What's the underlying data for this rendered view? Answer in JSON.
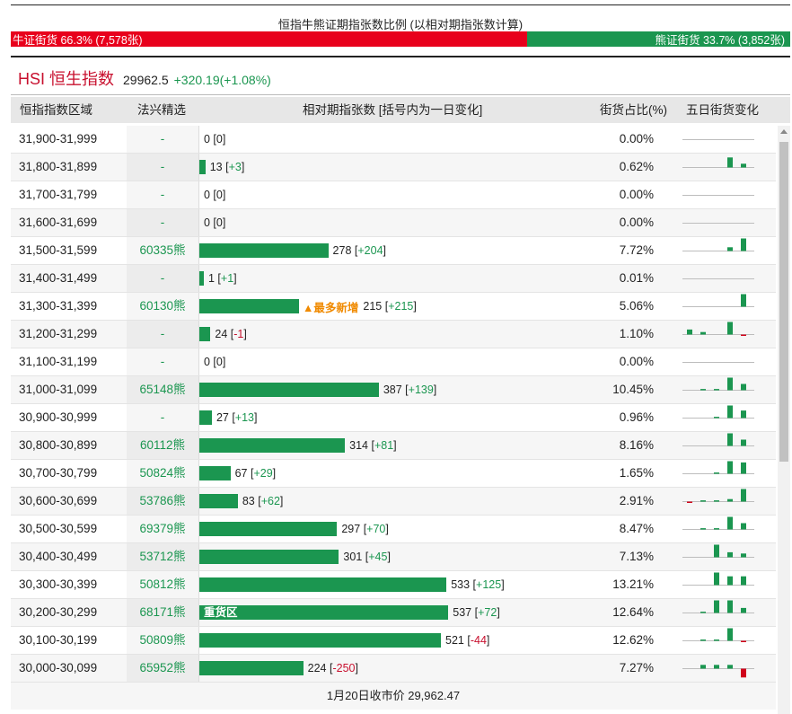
{
  "header": {
    "ratio_title": "恒指牛熊证期指张数比例 (以相对期指张数计算)",
    "bull_label": "牛证街货 66.3% (7,578张)",
    "bear_label": "熊证街货 33.7% (3,852张)",
    "bull_fraction": 0.663,
    "bull_color": "#e8001c",
    "bear_color": "#1b9650"
  },
  "index": {
    "name": "HSI 恒生指数",
    "price": "29962.5",
    "change": "+320.19(+1.08%)"
  },
  "table": {
    "columns": [
      "恒指指数区域",
      "法兴精选",
      "相对期指张数 [括号内为一日变化]",
      "街货占比(%)",
      "五日街货变化"
    ],
    "max_contracts": 550,
    "rows": [
      {
        "range": "31,900-31,999",
        "pick": "-",
        "value": "0",
        "delta": "0",
        "pct": "0.00%",
        "spark": [
          0,
          0,
          0,
          0,
          0
        ]
      },
      {
        "range": "31,800-31,899",
        "pick": "-",
        "value": "13",
        "delta": "+3",
        "pct": "0.62%",
        "spark": [
          0,
          0,
          0,
          8,
          3
        ]
      },
      {
        "range": "31,700-31,799",
        "pick": "-",
        "value": "0",
        "delta": "0",
        "pct": "0.00%",
        "spark": [
          0,
          0,
          0,
          0,
          0
        ]
      },
      {
        "range": "31,600-31,699",
        "pick": "-",
        "value": "0",
        "delta": "0",
        "pct": "0.00%",
        "spark": [
          0,
          0,
          0,
          0,
          0
        ]
      },
      {
        "range": "31,500-31,599",
        "pick": "60335熊",
        "value": "278",
        "delta": "+204",
        "pct": "7.72%",
        "spark": [
          0,
          0,
          0,
          3,
          10
        ]
      },
      {
        "range": "31,400-31,499",
        "pick": "-",
        "value": "1",
        "delta": "+1",
        "pct": "0.01%",
        "spark": [
          0,
          0,
          0,
          0,
          0
        ]
      },
      {
        "range": "31,300-31,399",
        "pick": "60130熊",
        "value": "215",
        "delta": "+215",
        "pct": "5.06%",
        "tag": "▲最多新增",
        "spark": [
          0,
          0,
          0,
          0,
          10
        ]
      },
      {
        "range": "31,200-31,299",
        "pick": "-",
        "value": "24",
        "delta": "-1",
        "pct": "1.10%",
        "spark": [
          4,
          2,
          0,
          10,
          -1
        ]
      },
      {
        "range": "31,100-31,199",
        "pick": "-",
        "value": "0",
        "delta": "0",
        "pct": "0.00%",
        "spark": [
          0,
          0,
          0,
          0,
          0
        ]
      },
      {
        "range": "31,000-31,099",
        "pick": "65148熊",
        "value": "387",
        "delta": "+139",
        "pct": "10.45%",
        "spark": [
          0,
          1,
          1,
          10,
          5
        ]
      },
      {
        "range": "30,900-30,999",
        "pick": "-",
        "value": "27",
        "delta": "+13",
        "pct": "0.96%",
        "spark": [
          0,
          0,
          1,
          10,
          6
        ]
      },
      {
        "range": "30,800-30,899",
        "pick": "60112熊",
        "value": "314",
        "delta": "+81",
        "pct": "8.16%",
        "spark": [
          0,
          0,
          0,
          10,
          5
        ]
      },
      {
        "range": "30,700-30,799",
        "pick": "50824熊",
        "value": "67",
        "delta": "+29",
        "pct": "1.65%",
        "spark": [
          0,
          0,
          1,
          10,
          9
        ]
      },
      {
        "range": "30,600-30,699",
        "pick": "53786熊",
        "value": "83",
        "delta": "+62",
        "pct": "2.91%",
        "spark": [
          -1,
          1,
          1,
          2,
          10
        ]
      },
      {
        "range": "30,500-30,599",
        "pick": "69379熊",
        "value": "297",
        "delta": "+70",
        "pct": "8.47%",
        "spark": [
          0,
          1,
          1,
          10,
          5
        ]
      },
      {
        "range": "30,400-30,499",
        "pick": "53712熊",
        "value": "301",
        "delta": "+45",
        "pct": "7.13%",
        "spark": [
          0,
          0,
          10,
          4,
          3
        ]
      },
      {
        "range": "30,300-30,399",
        "pick": "50812熊",
        "value": "533",
        "delta": "+125",
        "pct": "13.21%",
        "spark": [
          0,
          0,
          10,
          7,
          7
        ]
      },
      {
        "range": "30,200-30,299",
        "pick": "68171熊",
        "value": "537",
        "delta": "+72",
        "pct": "12.64%",
        "tag_bar": "重货区",
        "spark": [
          0,
          1,
          10,
          10,
          4
        ]
      },
      {
        "range": "30,100-30,199",
        "pick": "50809熊",
        "value": "521",
        "delta": "-44",
        "pct": "12.62%",
        "spark": [
          0,
          1,
          1,
          10,
          -1
        ]
      },
      {
        "range": "30,000-30,099",
        "pick": "65952熊",
        "value": "224",
        "delta": "-250",
        "pct": "7.27%",
        "spark": [
          0,
          3,
          3,
          3,
          -7
        ]
      }
    ],
    "footer": "1月20日收市价 29,962.47"
  }
}
